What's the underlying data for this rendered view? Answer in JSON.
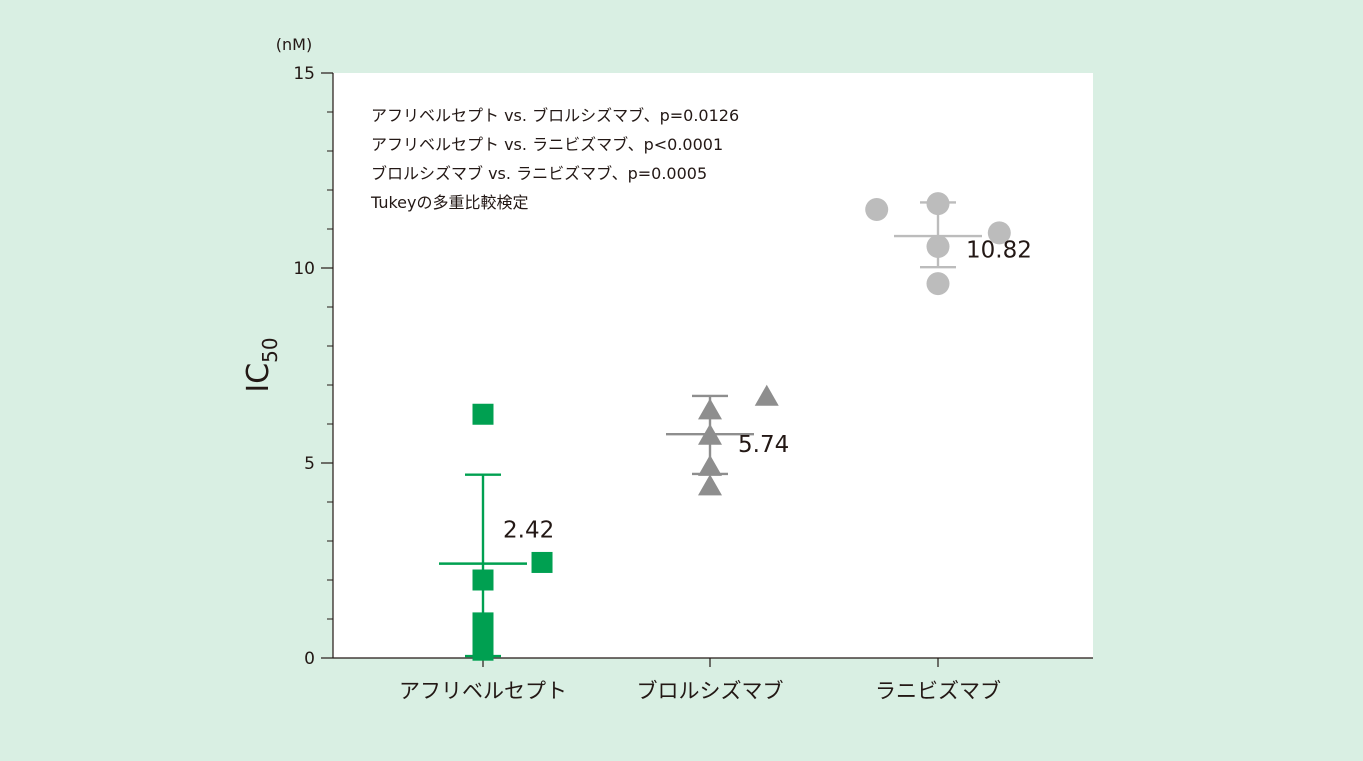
{
  "colors": {
    "background": "#d9efe3",
    "plot_background": "#ffffff",
    "axis": "#231815",
    "text": "#231815"
  },
  "chart_data": {
    "type": "scatter",
    "unit_label": "(nM)",
    "ylabel_main": "IC",
    "ylabel_sub": "50",
    "xlabel": "",
    "ylim": [
      0,
      15
    ],
    "y_major_ticks": [
      0,
      5,
      10,
      15
    ],
    "y_minor_step": 1,
    "grid": false,
    "categories": [
      "アフリベルセプト",
      "ブロルシズマブ",
      "ラニビズマブ"
    ],
    "annotations": [
      "アフリベルセプト vs. ブロルシズマブ、p=0.0126",
      "アフリベルセプト vs. ラニビズマブ、p<0.0001",
      "ブロルシズマブ vs. ラニビズマブ、p=0.0005",
      "Tukeyの多重比較検定"
    ],
    "series": [
      {
        "category": "アフリベルセプト",
        "marker": "square",
        "color": "#00a051",
        "points": [
          {
            "offset": 0.0,
            "value": 6.25
          },
          {
            "offset": 0.0,
            "value": 2.0
          },
          {
            "offset": 0.0,
            "value": 0.9
          },
          {
            "offset": 0.0,
            "value": 0.55
          },
          {
            "offset": 0.0,
            "value": 0.2
          },
          {
            "offset": 0.26,
            "value": 2.45
          }
        ],
        "mean": 2.42,
        "mean_label": "2.42",
        "error_upper": 4.7,
        "error_lower": 0.05
      },
      {
        "category": "ブロルシズマブ",
        "marker": "triangle",
        "color": "#8e8e8e",
        "points": [
          {
            "offset": 0.0,
            "value": 6.35
          },
          {
            "offset": 0.0,
            "value": 5.7
          },
          {
            "offset": 0.0,
            "value": 4.9
          },
          {
            "offset": 0.0,
            "value": 4.4
          },
          {
            "offset": 0.25,
            "value": 6.7
          }
        ],
        "mean": 5.74,
        "mean_label": "5.74",
        "error_upper": 6.72,
        "error_lower": 4.72
      },
      {
        "category": "ラニビズマブ",
        "marker": "circle",
        "color": "#bcbcbc",
        "points": [
          {
            "offset": -0.27,
            "value": 11.5
          },
          {
            "offset": 0.0,
            "value": 11.65
          },
          {
            "offset": 0.0,
            "value": 10.55
          },
          {
            "offset": 0.0,
            "value": 9.6
          },
          {
            "offset": 0.27,
            "value": 10.9
          }
        ],
        "mean": 10.82,
        "mean_label": "10.82",
        "error_upper": 11.68,
        "error_lower": 10.02
      }
    ]
  }
}
